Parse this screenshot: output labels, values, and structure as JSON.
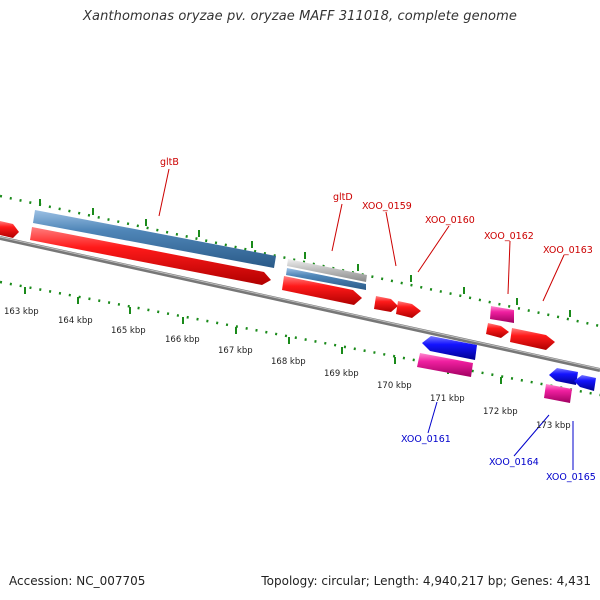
{
  "header": {
    "title": "Xanthomonas oryzae pv. oryzae MAFF 311018, complete genome"
  },
  "footer": {
    "accession": "Accession: NC_007705",
    "topology": "Topology: circular; Length: 4,940,217 bp; Genes: 4,431"
  },
  "scale_labels": [
    "163 kbp",
    "164 kbp",
    "165 kbp",
    "166 kbp",
    "167 kbp",
    "168 kbp",
    "169 kbp",
    "170 kbp",
    "171 kbp",
    "172 kbp",
    "173 kbp"
  ],
  "gene_labels_forward": [
    "gltB",
    "gltD",
    "XOO_0159",
    "XOO_0160",
    "XOO_0162",
    "XOO_0163"
  ],
  "gene_labels_reverse": [
    "XOO_0161",
    "XOO_0164",
    "XOO_0165"
  ],
  "colors": {
    "forward_gene": "#e8000b",
    "reverse_gene": "#1010e0",
    "pink_gene": "#e81890",
    "blue_gray_gene": "#4f86b8",
    "gray_gene": "#b8b8b8",
    "backbone": "#707070",
    "ticks": "#1a8a1a",
    "forward_label": "#cc0000",
    "reverse_label": "#0000cc"
  }
}
